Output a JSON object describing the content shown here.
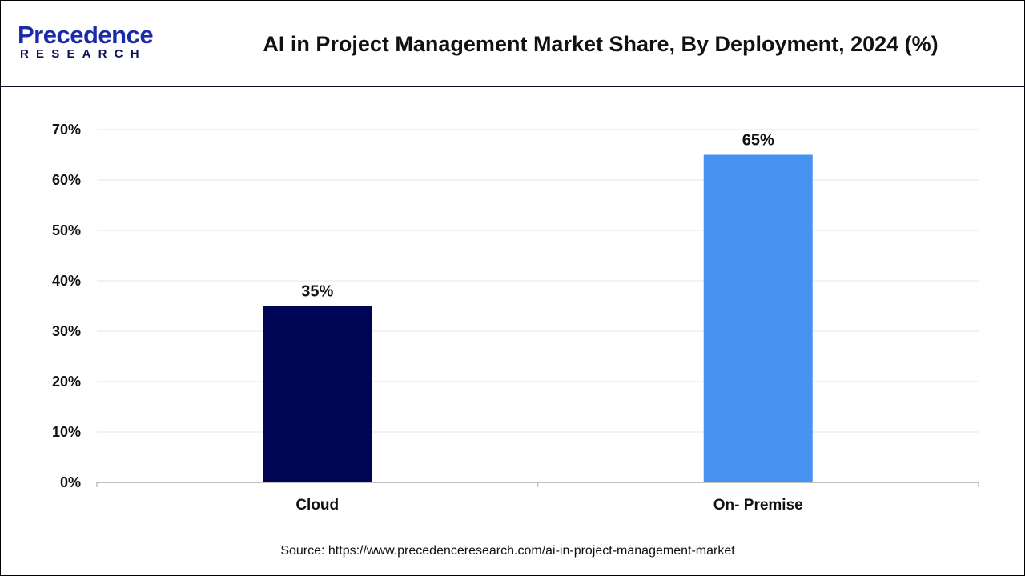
{
  "header": {
    "logo_line1": "Precedence",
    "logo_line2": "RESEARCH",
    "title": "AI in Project Management Market Share, By Deployment, 2024 (%)"
  },
  "source": "Source: https://www.precedenceresearch.com/ai-in-project-management-market",
  "chart_data": {
    "type": "bar",
    "title": "AI in Project Management Market Share, By Deployment, 2024 (%)",
    "categories": [
      "Cloud",
      "On- Premise"
    ],
    "values": [
      35,
      65
    ],
    "data_labels": [
      "35%",
      "65%"
    ],
    "colors": [
      "#000455",
      "#4592ef"
    ],
    "ylim": [
      0,
      70
    ],
    "yticks": [
      "0%",
      "10%",
      "20%",
      "30%",
      "40%",
      "50%",
      "60%",
      "70%"
    ],
    "grid": true,
    "xlabel": "",
    "ylabel": ""
  }
}
